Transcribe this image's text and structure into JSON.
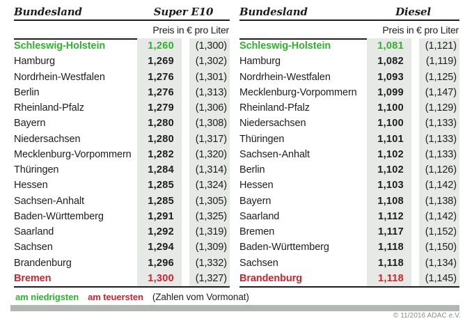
{
  "chart_data": [
    {
      "type": "table",
      "name_header": "Bundesland",
      "fuel_header": "Super E10",
      "subheader": "Preis in € pro Liter",
      "rows": [
        {
          "state": "Schleswig-Holstein",
          "price": "1,260",
          "prev": "(1,300)",
          "highlight": "lowest"
        },
        {
          "state": "Hamburg",
          "price": "1,269",
          "prev": "(1,302)"
        },
        {
          "state": "Nordrhein-Westfalen",
          "price": "1,276",
          "prev": "(1,301)"
        },
        {
          "state": "Berlin",
          "price": "1,276",
          "prev": "(1,313)"
        },
        {
          "state": "Rheinland-Pfalz",
          "price": "1,279",
          "prev": "(1,306)"
        },
        {
          "state": "Bayern",
          "price": "1,280",
          "prev": "(1,308)"
        },
        {
          "state": "Niedersachsen",
          "price": "1,280",
          "prev": "(1,317)"
        },
        {
          "state": "Mecklenburg-Vorpommern",
          "price": "1,282",
          "prev": "(1,320)"
        },
        {
          "state": "Thüringen",
          "price": "1,284",
          "prev": "(1,314)"
        },
        {
          "state": "Hessen",
          "price": "1,285",
          "prev": "(1,324)"
        },
        {
          "state": "Sachsen-Anhalt",
          "price": "1,285",
          "prev": "(1,305)"
        },
        {
          "state": "Baden-Württemberg",
          "price": "1,291",
          "prev": "(1,325)"
        },
        {
          "state": "Saarland",
          "price": "1,292",
          "prev": "(1,319)"
        },
        {
          "state": "Sachsen",
          "price": "1,294",
          "prev": "(1,309)"
        },
        {
          "state": "Brandenburg",
          "price": "1,296",
          "prev": "(1,332)"
        },
        {
          "state": "Bremen",
          "price": "1,300",
          "prev": "(1,327)",
          "highlight": "highest"
        }
      ]
    },
    {
      "type": "table",
      "name_header": "Bundesland",
      "fuel_header": "Diesel",
      "subheader": "Preis in € pro Liter",
      "rows": [
        {
          "state": "Schleswig-Holstein",
          "price": "1,081",
          "prev": "(1,121)",
          "highlight": "lowest"
        },
        {
          "state": "Hamburg",
          "price": "1,082",
          "prev": "(1,119)"
        },
        {
          "state": "Nordrhein-Westfalen",
          "price": "1,093",
          "prev": "(1,125)"
        },
        {
          "state": "Mecklenburg-Vorpommern",
          "price": "1,099",
          "prev": "(1,147)"
        },
        {
          "state": "Rheinland-Pfalz",
          "price": "1,100",
          "prev": "(1,129)"
        },
        {
          "state": "Niedersachsen",
          "price": "1,100",
          "prev": "(1,133)"
        },
        {
          "state": "Thüringen",
          "price": "1,101",
          "prev": "(1,133)"
        },
        {
          "state": "Sachsen-Anhalt",
          "price": "1,102",
          "prev": "(1,133)"
        },
        {
          "state": "Berlin",
          "price": "1,102",
          "prev": "(1,126)"
        },
        {
          "state": "Hessen",
          "price": "1,103",
          "prev": "(1,142)"
        },
        {
          "state": "Bayern",
          "price": "1,108",
          "prev": "(1,138)"
        },
        {
          "state": "Saarland",
          "price": "1,112",
          "prev": "(1,142)"
        },
        {
          "state": "Bremen",
          "price": "1,117",
          "prev": "(1,152)"
        },
        {
          "state": "Baden-Württemberg",
          "price": "1,118",
          "prev": "(1,150)"
        },
        {
          "state": "Sachsen",
          "price": "1,118",
          "prev": "(1,134)"
        },
        {
          "state": "Brandenburg",
          "price": "1,118",
          "prev": "(1,145)",
          "highlight": "highest"
        }
      ]
    }
  ],
  "legend": {
    "lowest": "am niedrigsten",
    "highest": "am teuersten",
    "note": "(Zahlen vom Vormonat)"
  },
  "footer": {
    "copyright": "© 11/2016 ADAC e.V."
  },
  "colors": {
    "lowest_green": "#2eb32c",
    "highest_red": "#d2222a",
    "price_column_bg": "#e6e9e6",
    "divider_bar_gray": "#b3b7b4",
    "text_ink": "#1d1d1b",
    "copyright_gray": "#8b8b8b"
  }
}
